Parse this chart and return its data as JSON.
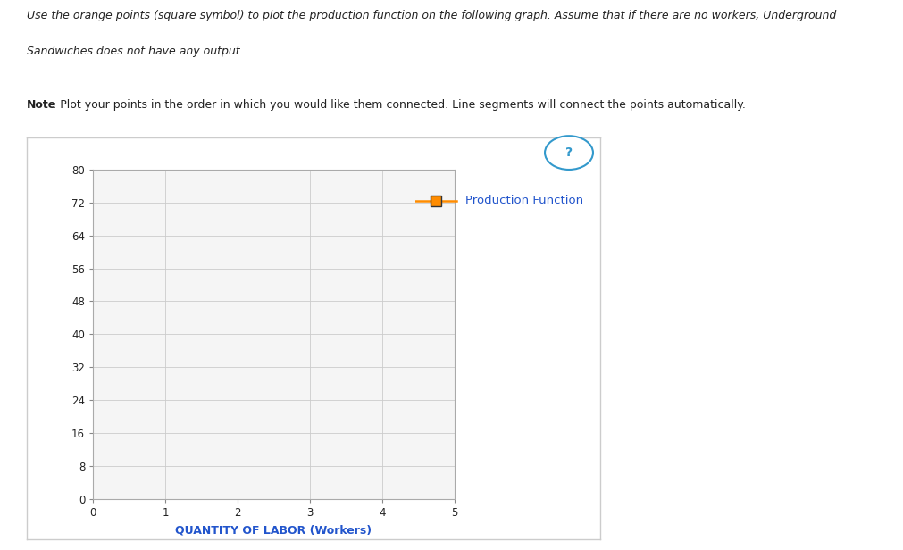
{
  "title_line1": "Use the orange points (square symbol) to plot the production function on the following graph. Assume that if there are no workers, Underground",
  "title_line2": "Sandwiches does not have any output.",
  "note_bold": "Note",
  "note_rest": ": Plot your points in the order in which you would like them connected. Line segments will connect the points automatically.",
  "xlabel": "QUANTITY OF LABOR (Workers)",
  "yticks": [
    0,
    8,
    16,
    24,
    32,
    40,
    48,
    56,
    64,
    72,
    80
  ],
  "xticks": [
    0,
    1,
    2,
    3,
    4,
    5
  ],
  "xlim": [
    0,
    5
  ],
  "ylim": [
    0,
    80
  ],
  "grid_color": "#cccccc",
  "axis_color": "#aaaaaa",
  "tick_color": "#888888",
  "bg_color": "#ffffff",
  "plot_bg": "#f5f5f5",
  "panel_border_color": "#cccccc",
  "legend_label": "Production Function",
  "marker_color": "#ff8c00",
  "marker_edge_color": "#333333",
  "line_color": "#ff8c00",
  "xlabel_color": "#2255cc",
  "legend_text_color": "#2255cc",
  "question_mark_color": "#3399cc",
  "text_color": "#222222",
  "title_fontsize": 9.0,
  "note_fontsize": 9.0,
  "tick_fontsize": 8.5,
  "xlabel_fontsize": 9.0,
  "legend_fontsize": 9.5
}
